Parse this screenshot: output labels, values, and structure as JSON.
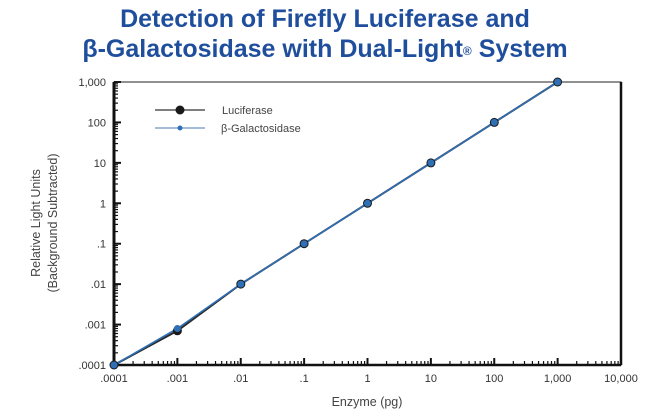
{
  "title": {
    "line1": "Detection of Firefly Luciferase and",
    "line2_prefix": "β-Galactosidase with Dual-Light",
    "line2_reg": "®",
    "line2_suffix": " System",
    "color": "#1f4e9c"
  },
  "chart_data": {
    "type": "line",
    "title": "Detection of Firefly Luciferase and β-Galactosidase with Dual-Light® System",
    "xlabel": "Enzyme (pg)",
    "ylabel": "Relative Light Units",
    "ylabel_sub": "(Background Subtracted)",
    "xscale": "log",
    "yscale": "log",
    "xlim": [
      0.0001,
      10000
    ],
    "ylim": [
      0.0001,
      1000
    ],
    "x_tick_labels": [
      ".0001",
      ".001",
      ".01",
      ".1",
      "1",
      "10",
      "100",
      "1,000",
      "10,000"
    ],
    "x_tick_values": [
      0.0001,
      0.001,
      0.01,
      0.1,
      1,
      10,
      100,
      1000,
      10000
    ],
    "y_tick_labels": [
      ".0001",
      ".001",
      ".01",
      ".1",
      "1",
      "10",
      "100",
      "1,000"
    ],
    "y_tick_values": [
      0.0001,
      0.001,
      0.01,
      0.1,
      1,
      10,
      100,
      1000
    ],
    "grid": false,
    "legend_position": "upper-left",
    "series": [
      {
        "name": "Luciferase",
        "color": "#1a1a1a",
        "marker": "large-circle",
        "x": [
          0.0001,
          0.001,
          0.01,
          0.1,
          1,
          10,
          100,
          1000
        ],
        "y": [
          0.0001,
          0.0007,
          0.01,
          0.1,
          1,
          10,
          100,
          1000
        ]
      },
      {
        "name": "β-Galactosidase",
        "color": "#2e6fb5",
        "marker": "small-circle",
        "x": [
          0.0001,
          0.001,
          0.01,
          0.1,
          1,
          10,
          100,
          1000
        ],
        "y": [
          0.0001,
          0.0008,
          0.01,
          0.1,
          1,
          10,
          100,
          1000
        ]
      }
    ]
  }
}
